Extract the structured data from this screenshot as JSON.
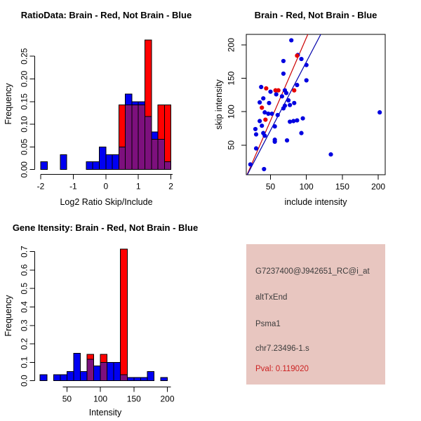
{
  "colors": {
    "hist_red": "#FF0000",
    "hist_blue": "#0000F2",
    "hist_overlap": "#7D107D",
    "scatter_red": "#E60000",
    "scatter_blue": "#0000E0",
    "fit_line_red": "#CC0000",
    "fit_line_blue": "#0000AA",
    "axis": "#000000",
    "info_bg": "#E8C6C0",
    "info_text": "#3C3C3C",
    "pval_red": "#CC2222"
  },
  "chart_data": [
    {
      "type": "histogram",
      "title": "RatioData: Brain - Red, Not Brain - Blue",
      "xlabel": "Log2 Ratio Skip/Include",
      "ylabel": "Frequency",
      "xticks": [
        -2,
        -1,
        0,
        1,
        2
      ],
      "ytick_labels": [
        "0.00",
        "0.05",
        "0.10",
        "0.15",
        "0.20",
        "0.25"
      ],
      "yticks": [
        0,
        0.05,
        0.1,
        0.15,
        0.2,
        0.25
      ],
      "xlim": [
        -2.16,
        2.16
      ],
      "ylim": [
        0,
        0.2971
      ],
      "bin_width": 0.2,
      "red_bins": [
        [
          0.4,
          0.143
        ],
        [
          0.6,
          0.143
        ],
        [
          0.8,
          0.143
        ],
        [
          1.0,
          0.143
        ],
        [
          1.2,
          0.286
        ],
        [
          1.4,
          0.067
        ],
        [
          1.6,
          0.143
        ],
        [
          1.8,
          0.143
        ]
      ],
      "blue_bins": [
        [
          -2.0,
          0.017
        ],
        [
          -1.4,
          0.033
        ],
        [
          -0.6,
          0.017
        ],
        [
          -0.4,
          0.017
        ],
        [
          -0.2,
          0.05
        ],
        [
          0.0,
          0.033
        ],
        [
          0.2,
          0.033
        ],
        [
          0.4,
          0.05
        ],
        [
          0.6,
          0.167
        ],
        [
          0.8,
          0.15
        ],
        [
          1.0,
          0.15
        ],
        [
          1.2,
          0.117
        ],
        [
          1.4,
          0.083
        ],
        [
          1.6,
          0.067
        ],
        [
          1.8,
          0.017
        ]
      ]
    },
    {
      "type": "scatter",
      "title": "Brain - Red, Not Brain - Blue",
      "xlabel": "include intensity",
      "ylabel": "skip intensity",
      "xticks": [
        50,
        100,
        150,
        200
      ],
      "yticks": [
        50,
        100,
        150,
        200
      ],
      "xlim": [
        16.5,
        210
      ],
      "ylim": [
        2,
        216
      ],
      "blue_points": [
        [
          79,
          207
        ],
        [
          88,
          185
        ],
        [
          93,
          179
        ],
        [
          68,
          176
        ],
        [
          100,
          170
        ],
        [
          68,
          157
        ],
        [
          100,
          147
        ],
        [
          87,
          140
        ],
        [
          37,
          137
        ],
        [
          70,
          132
        ],
        [
          50,
          130
        ],
        [
          72,
          128
        ],
        [
          58,
          126
        ],
        [
          40,
          120
        ],
        [
          66,
          123
        ],
        [
          75,
          117
        ],
        [
          35,
          114
        ],
        [
          48,
          113
        ],
        [
          83,
          113
        ],
        [
          77,
          110
        ],
        [
          70,
          109
        ],
        [
          68,
          105
        ],
        [
          42,
          99
        ],
        [
          47,
          97
        ],
        [
          52,
          97
        ],
        [
          60,
          95
        ],
        [
          95,
          90
        ],
        [
          87,
          87
        ],
        [
          82,
          86
        ],
        [
          77,
          85
        ],
        [
          35,
          86
        ],
        [
          38,
          79
        ],
        [
          56,
          78
        ],
        [
          29,
          74
        ],
        [
          40,
          68
        ],
        [
          42,
          64
        ],
        [
          30,
          66
        ],
        [
          56,
          58
        ],
        [
          56,
          55
        ],
        [
          73,
          57
        ],
        [
          93,
          68
        ],
        [
          30,
          45
        ],
        [
          22,
          21
        ],
        [
          41,
          14
        ],
        [
          134,
          36
        ],
        [
          202,
          99
        ]
      ],
      "red_points": [
        [
          44,
          135
        ],
        [
          57,
          132
        ],
        [
          61,
          132
        ],
        [
          83,
          132
        ],
        [
          87,
          184
        ],
        [
          38,
          106
        ],
        [
          43,
          88
        ]
      ],
      "red_line": {
        "x1": 16,
        "y1": 2,
        "x2": 102,
        "y2": 216
      },
      "blue_line": {
        "x1": 16,
        "y1": 2,
        "x2": 120,
        "y2": 216
      }
    },
    {
      "type": "histogram",
      "title": "Gene Itensity: Brain - Red, Not Brain - Blue",
      "xlabel": "Intensity",
      "ylabel": "Frequency",
      "xticks": [
        50,
        100,
        150,
        200
      ],
      "ytick_labels": [
        "0.0",
        "0.1",
        "0.2",
        "0.3",
        "0.4",
        "0.5",
        "0.6",
        "0.7"
      ],
      "yticks": [
        0,
        0.1,
        0.2,
        0.3,
        0.4,
        0.5,
        0.6,
        0.7
      ],
      "xlim": [
        2,
        215
      ],
      "ylim": [
        0,
        0.74
      ],
      "bin_width": 10,
      "red_bins": [
        [
          80,
          0.143
        ],
        [
          100,
          0.143
        ],
        [
          130,
          0.714
        ]
      ],
      "blue_bins": [
        [
          10,
          0.033
        ],
        [
          30,
          0.033
        ],
        [
          40,
          0.033
        ],
        [
          50,
          0.05
        ],
        [
          60,
          0.15
        ],
        [
          70,
          0.05
        ],
        [
          80,
          0.117
        ],
        [
          90,
          0.08
        ],
        [
          100,
          0.1
        ],
        [
          110,
          0.1
        ],
        [
          120,
          0.1
        ],
        [
          130,
          0.033
        ],
        [
          140,
          0.017
        ],
        [
          150,
          0.017
        ],
        [
          160,
          0.017
        ],
        [
          170,
          0.05
        ],
        [
          190,
          0.017
        ]
      ]
    }
  ],
  "info": {
    "lines": [
      {
        "text": "G7237400@J942651_RC@i_at",
        "color": "#3C3C3C"
      },
      {
        "text": "altTxEnd",
        "color": "#3C3C3C"
      },
      {
        "text": "Psma1",
        "color": "#3C3C3C"
      },
      {
        "text": "chr7.23496-1.s",
        "color": "#3C3C3C"
      },
      {
        "text": "Pval: 0.119020",
        "color": "#CC2222"
      }
    ]
  }
}
